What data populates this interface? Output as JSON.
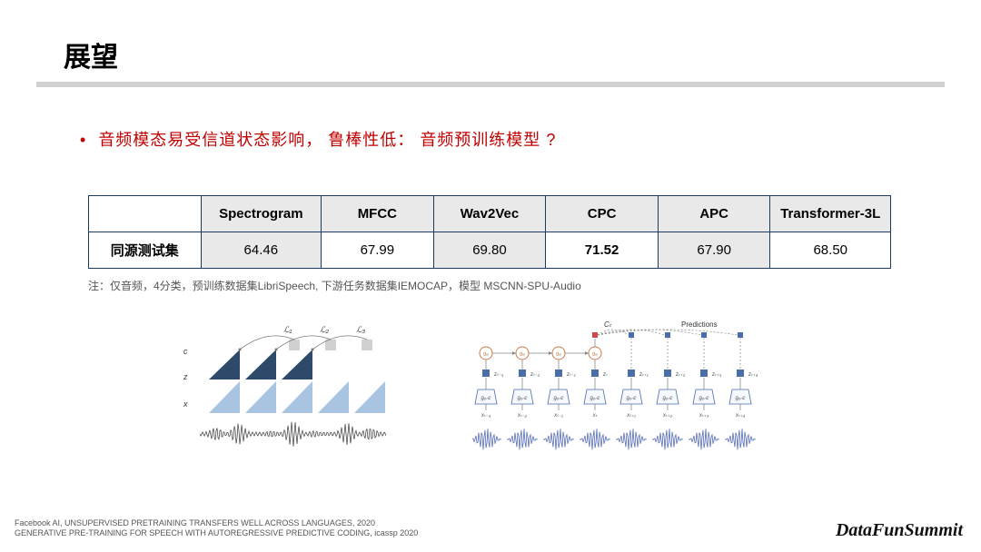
{
  "title": "展望",
  "bullet": "音频模态易受信道状态影响，  鲁棒性低：  音频预训练模型  ?",
  "table": {
    "columns": [
      "",
      "Spectrogram",
      "MFCC",
      "Wav2Vec",
      "CPC",
      "APC",
      "Transformer-3L"
    ],
    "col_widths_pct": [
      14,
      15,
      14,
      14,
      14,
      14,
      15
    ],
    "row_header": "同源测试集",
    "cells": [
      {
        "value": "64.46",
        "shaded": true,
        "bold": false
      },
      {
        "value": "67.99",
        "shaded": false,
        "bold": false
      },
      {
        "value": "69.80",
        "shaded": true,
        "bold": false
      },
      {
        "value": "71.52",
        "shaded": false,
        "bold": true
      },
      {
        "value": "67.90",
        "shaded": true,
        "bold": false
      },
      {
        "value": "68.50",
        "shaded": false,
        "bold": false
      }
    ],
    "border_color": "#1f3a5f",
    "header_bg": "#e9e9e9",
    "shade_bg": "#e9e9e9"
  },
  "note": "注：仅音频，4分类，预训练数据集LibriSpeech, 下游任务数据集IEMOCAP，模型 MSCNN-SPU-Audio",
  "fig1": {
    "row_labels": [
      "c",
      "z",
      "x"
    ],
    "loss_labels": [
      "ℒ₁",
      "ℒ₂",
      "ℒ₃"
    ],
    "tri_dark": "#2e4a6b",
    "tri_light": "#a9c4e0",
    "square_fill": "#d0d0d0",
    "line_color": "#7a7a7a",
    "wave_color": "#3a3a3a"
  },
  "fig2": {
    "title_c": "Cₜ",
    "title_pred": "Predictions",
    "node_stroke": "#d07a4a",
    "arrow_color": "#888888",
    "dash_color": "#888888",
    "box_stroke": "#4a6ea9",
    "box_fill": "#f5f8fc",
    "top_red": "#d04a4a",
    "top_blue": "#4a6ea9",
    "wave_color": "#5a6eb8",
    "g_labels": [
      "gₑₙc",
      "gₑₙc",
      "gₑₙc",
      "gₑₙc",
      "gₑₙc",
      "gₑₙc",
      "gₑₙc",
      "gₑₙc"
    ],
    "x_labels": [
      "xₜ₋₃",
      "xₜ₋₂",
      "xₜ₋₁",
      "xₜ",
      "xₜ₊₁",
      "xₜ₊₂",
      "xₜ₊₃",
      "xₜ₊₄"
    ],
    "z_labels": [
      "zₜ₋₃",
      "zₜ₋₂",
      "zₜ₋₁",
      "zₜ",
      "zₜ₊₁",
      "zₜ₊₂",
      "zₜ₊₃",
      "zₜ₊₄"
    ]
  },
  "refs": {
    "line1": "Facebook AI, UNSUPERVISED PRETRAINING TRANSFERS WELL ACROSS LANGUAGES, 2020",
    "line2": "GENERATIVE PRE-TRAINING FOR SPEECH WITH AUTOREGRESSIVE PREDICTIVE CODING, icassp 2020"
  },
  "brand": "DataFunSummit",
  "colors": {
    "rule": "#d0d0d0",
    "bullet": "#c00000"
  }
}
